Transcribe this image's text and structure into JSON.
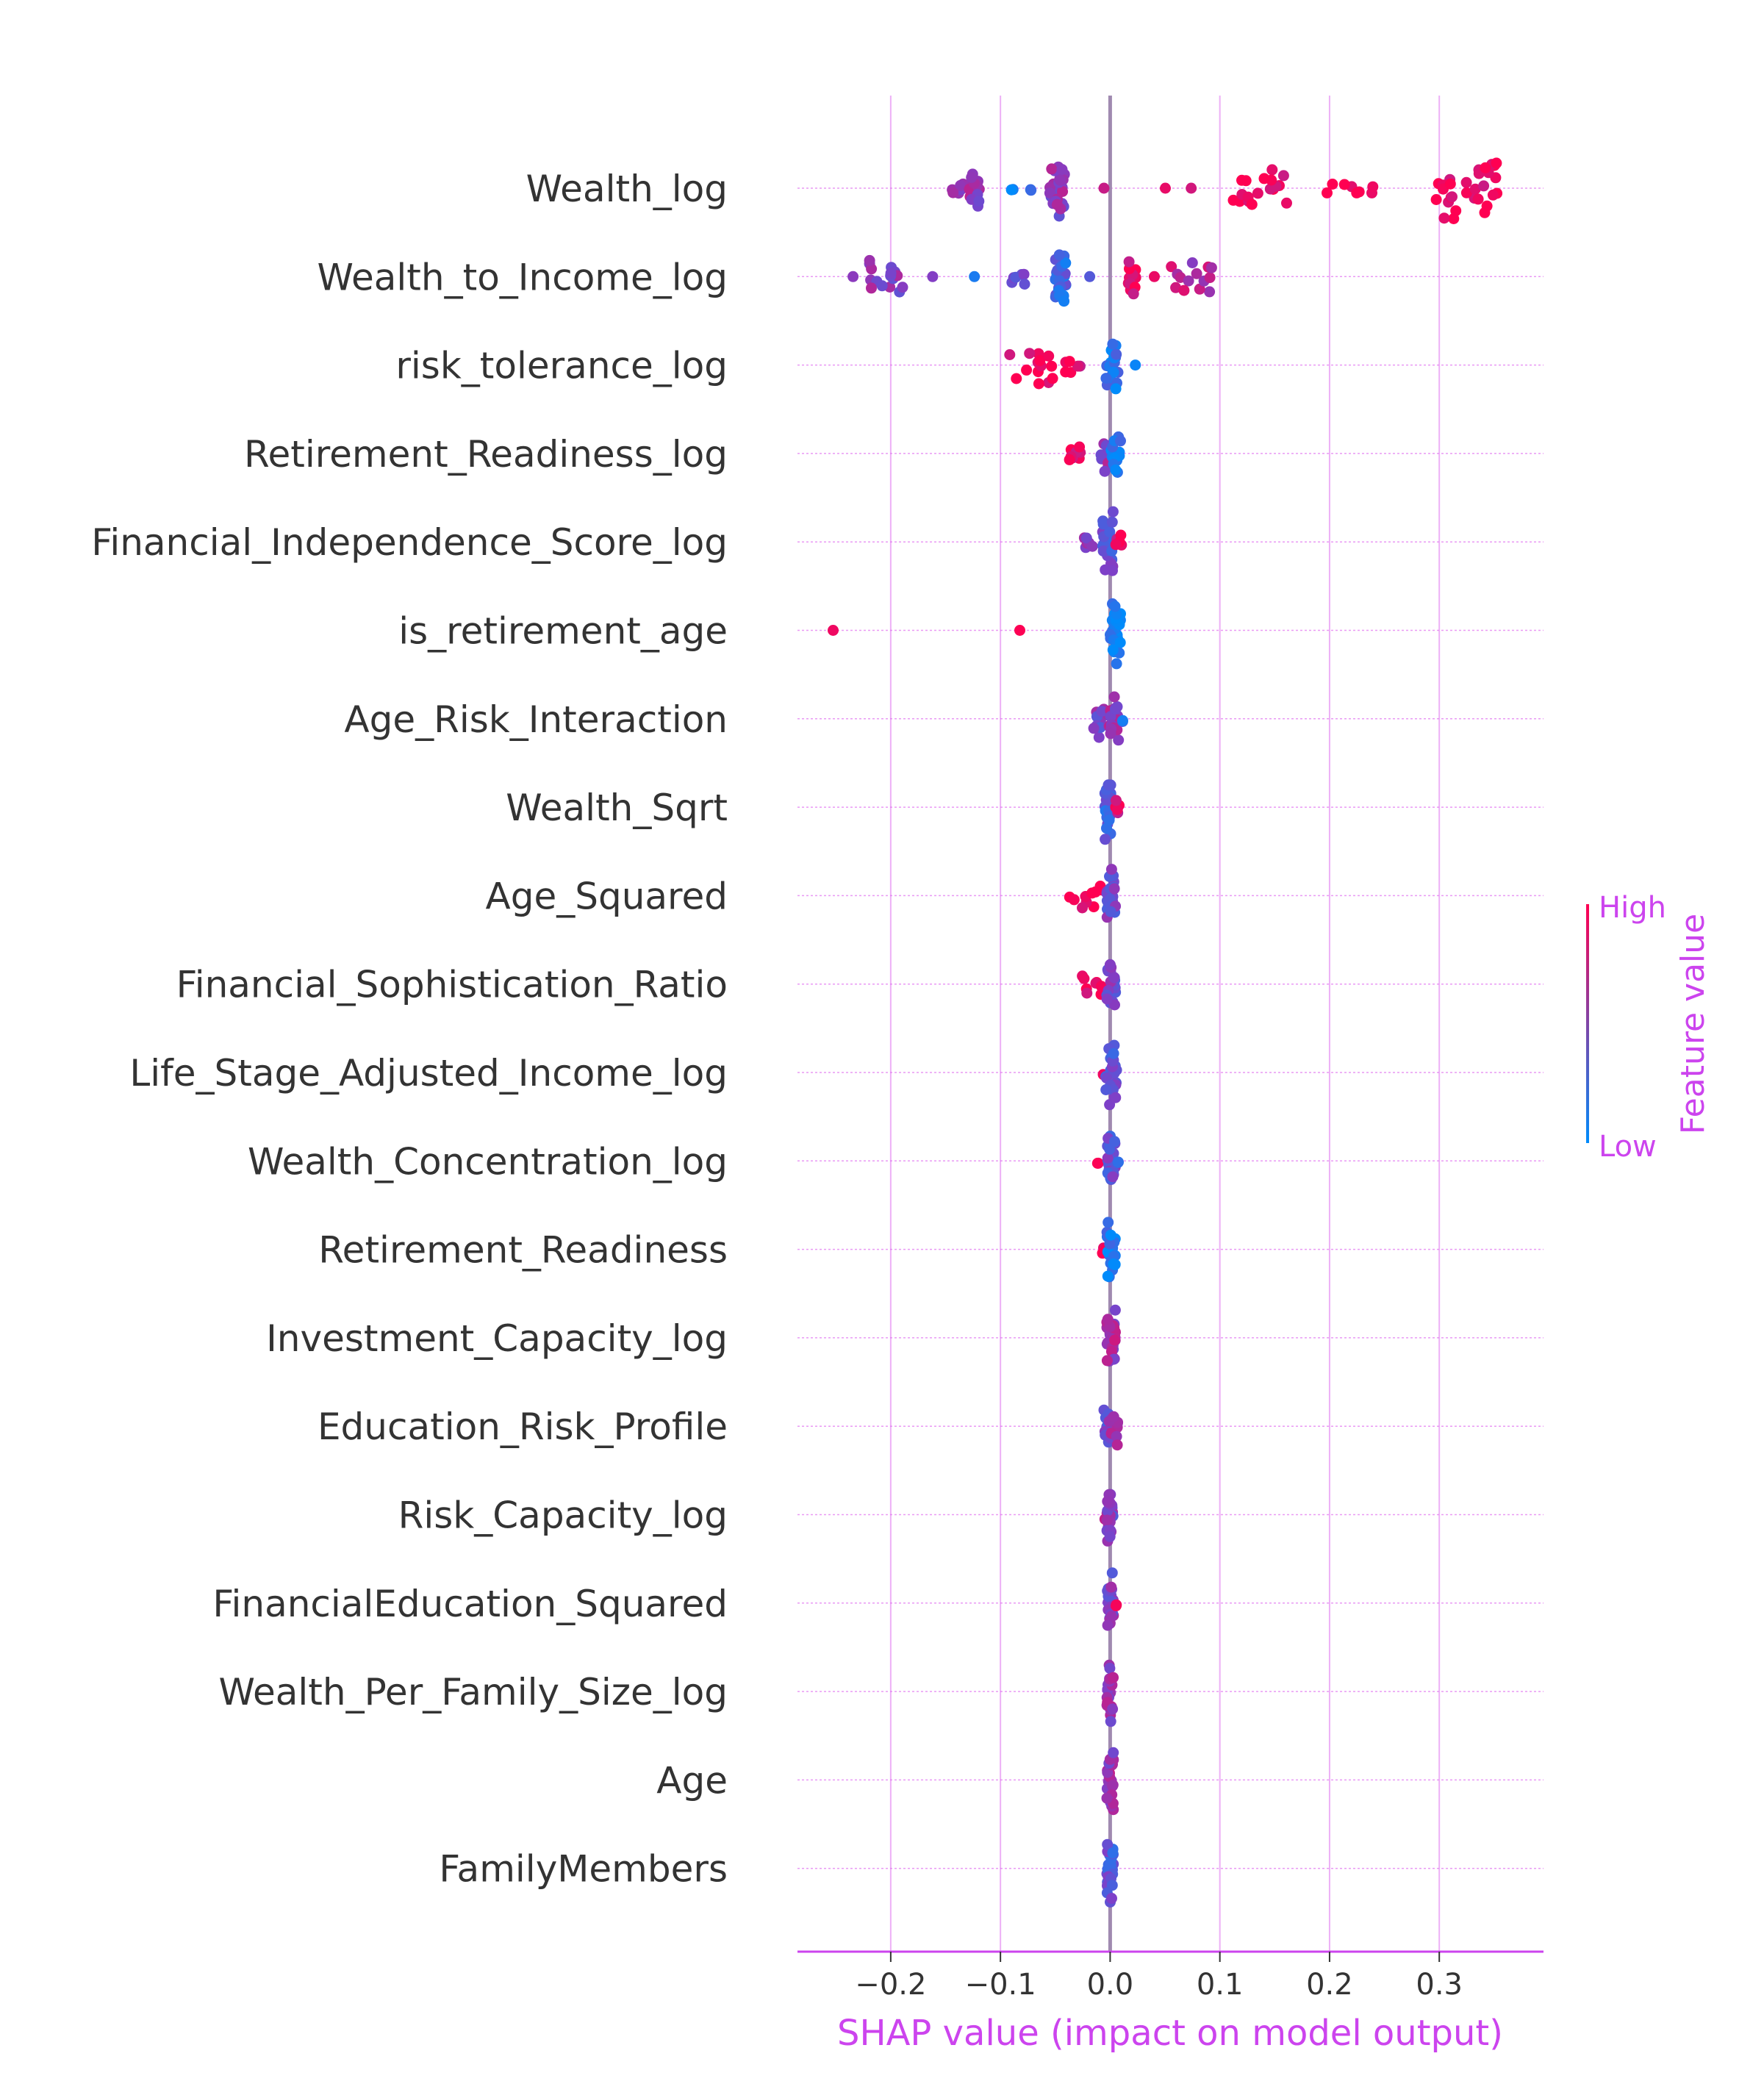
{
  "chart_data": {
    "type": "scatter",
    "subtype": "shap-beeswarm",
    "title": "",
    "xlabel": "SHAP value (impact on model output)",
    "xlim": [
      -0.285,
      0.395
    ],
    "xticks": [
      -0.2,
      -0.1,
      0.0,
      0.1,
      0.2,
      0.3
    ],
    "xtick_labels": [
      "−0.2",
      "−0.1",
      "0.0",
      "0.1",
      "0.2",
      "0.3"
    ],
    "grid": true,
    "colorbar": {
      "high_label": "High",
      "low_label": "Low",
      "title": "Feature value",
      "high_color": "#ff0052",
      "low_color": "#008bfb"
    },
    "colors": {
      "accent": "#cc44ee",
      "zero_line": "#a08ab0",
      "row_line": "#e070f0"
    },
    "features": [
      {
        "name": "Wealth_log",
        "clusters": [
          {
            "x": -0.14,
            "hw": 0.006,
            "n": 6,
            "c": 0.55
          },
          {
            "x": -0.125,
            "hw": 0.006,
            "n": 14,
            "c": 0.6
          },
          {
            "x": -0.087,
            "hw": 0.003,
            "n": 2,
            "c": 0.05
          },
          {
            "x": -0.072,
            "hw": 0.003,
            "n": 2,
            "c": 0.1
          },
          {
            "x": -0.048,
            "hw": 0.007,
            "n": 28,
            "c": 0.55
          },
          {
            "x": -0.005,
            "hw": 0.002,
            "n": 1,
            "c": 0.95
          },
          {
            "x": 0.05,
            "hw": 0.001,
            "n": 1,
            "c": 0.95
          },
          {
            "x": 0.075,
            "hw": 0.001,
            "n": 1,
            "c": 0.95
          },
          {
            "x": 0.135,
            "hw": 0.03,
            "n": 18,
            "c": 0.95
          },
          {
            "x": 0.21,
            "hw": 0.03,
            "n": 8,
            "c": 0.95
          },
          {
            "x": 0.325,
            "hw": 0.028,
            "n": 30,
            "c": 0.95
          }
        ]
      },
      {
        "name": "Wealth_to_Income_log",
        "clusters": [
          {
            "x": -0.235,
            "hw": 0.002,
            "n": 1,
            "c": 0.55
          },
          {
            "x": -0.205,
            "hw": 0.016,
            "n": 16,
            "c": 0.55
          },
          {
            "x": -0.16,
            "hw": 0.003,
            "n": 1,
            "c": 0.45
          },
          {
            "x": -0.125,
            "hw": 0.002,
            "n": 1,
            "c": 0.05
          },
          {
            "x": -0.085,
            "hw": 0.008,
            "n": 6,
            "c": 0.5
          },
          {
            "x": -0.045,
            "hw": 0.005,
            "n": 32,
            "c": 0.25
          },
          {
            "x": -0.02,
            "hw": 0.002,
            "n": 1,
            "c": 0.5
          },
          {
            "x": 0.02,
            "hw": 0.004,
            "n": 14,
            "c": 0.9
          },
          {
            "x": 0.04,
            "hw": 0.002,
            "n": 1,
            "c": 0.95
          },
          {
            "x": 0.075,
            "hw": 0.02,
            "n": 14,
            "c": 0.7
          }
        ]
      },
      {
        "name": "risk_tolerance_log",
        "clusters": [
          {
            "x": -0.072,
            "hw": 0.02,
            "n": 14,
            "c": 0.95
          },
          {
            "x": -0.03,
            "hw": 0.012,
            "n": 6,
            "c": 0.9
          },
          {
            "x": 0.002,
            "hw": 0.006,
            "n": 18,
            "c": 0.15
          },
          {
            "x": 0.025,
            "hw": 0.002,
            "n": 1,
            "c": 0.05
          }
        ]
      },
      {
        "name": "Retirement_Readiness_log",
        "clusters": [
          {
            "x": -0.028,
            "hw": 0.014,
            "n": 8,
            "c": 0.95
          },
          {
            "x": -0.003,
            "hw": 0.006,
            "n": 14,
            "c": 0.6
          },
          {
            "x": 0.006,
            "hw": 0.005,
            "n": 16,
            "c": 0.1
          }
        ]
      },
      {
        "name": "Financial_Independence_Score_log",
        "clusters": [
          {
            "x": -0.018,
            "hw": 0.006,
            "n": 6,
            "c": 0.5
          },
          {
            "x": -0.002,
            "hw": 0.005,
            "n": 24,
            "c": 0.4
          },
          {
            "x": 0.008,
            "hw": 0.004,
            "n": 5,
            "c": 0.9
          }
        ]
      },
      {
        "name": "is_retirement_age",
        "clusters": [
          {
            "x": -0.252,
            "hw": 0.001,
            "n": 1,
            "c": 0.95
          },
          {
            "x": -0.082,
            "hw": 0.001,
            "n": 1,
            "c": 0.95
          },
          {
            "x": 0.005,
            "hw": 0.005,
            "n": 30,
            "c": 0.05
          }
        ]
      },
      {
        "name": "Age_Risk_Interaction",
        "clusters": [
          {
            "x": -0.008,
            "hw": 0.008,
            "n": 14,
            "c": 0.5
          },
          {
            "x": 0.002,
            "hw": 0.006,
            "n": 18,
            "c": 0.6
          },
          {
            "x": 0.012,
            "hw": 0.003,
            "n": 2,
            "c": 0.2
          }
        ]
      },
      {
        "name": "Wealth_Sqrt",
        "clusters": [
          {
            "x": -0.002,
            "hw": 0.003,
            "n": 24,
            "c": 0.3
          },
          {
            "x": 0.008,
            "hw": 0.003,
            "n": 5,
            "c": 0.9
          }
        ]
      },
      {
        "name": "Age_Squared",
        "clusters": [
          {
            "x": -0.022,
            "hw": 0.016,
            "n": 10,
            "c": 0.95
          },
          {
            "x": 0.001,
            "hw": 0.004,
            "n": 22,
            "c": 0.45
          }
        ]
      },
      {
        "name": "Financial_Sophistication_Ratio",
        "clusters": [
          {
            "x": -0.017,
            "hw": 0.01,
            "n": 8,
            "c": 0.95
          },
          {
            "x": 0.001,
            "hw": 0.004,
            "n": 22,
            "c": 0.45
          }
        ]
      },
      {
        "name": "Life_Stage_Adjusted_Income_log",
        "clusters": [
          {
            "x": -0.007,
            "hw": 0.002,
            "n": 2,
            "c": 0.95
          },
          {
            "x": 0.001,
            "hw": 0.005,
            "n": 26,
            "c": 0.4
          }
        ]
      },
      {
        "name": "Wealth_Concentration_log",
        "clusters": [
          {
            "x": -0.01,
            "hw": 0.002,
            "n": 2,
            "c": 0.95
          },
          {
            "x": 0.001,
            "hw": 0.004,
            "n": 24,
            "c": 0.4
          },
          {
            "x": 0.008,
            "hw": 0.002,
            "n": 2,
            "c": 0.1
          }
        ]
      },
      {
        "name": "Retirement_Readiness",
        "clusters": [
          {
            "x": -0.005,
            "hw": 0.002,
            "n": 4,
            "c": 0.95
          },
          {
            "x": 0.001,
            "hw": 0.004,
            "n": 24,
            "c": 0.1
          }
        ]
      },
      {
        "name": "Investment_Capacity_log",
        "clusters": [
          {
            "x": 0.001,
            "hw": 0.004,
            "n": 28,
            "c": 0.6
          },
          {
            "x": 0.006,
            "hw": 0.002,
            "n": 2,
            "c": 0.65
          }
        ]
      },
      {
        "name": "Education_Risk_Profile",
        "clusters": [
          {
            "x": -0.002,
            "hw": 0.004,
            "n": 14,
            "c": 0.4
          },
          {
            "x": 0.003,
            "hw": 0.004,
            "n": 14,
            "c": 0.6
          }
        ]
      },
      {
        "name": "Risk_Capacity_log",
        "clusters": [
          {
            "x": -0.003,
            "hw": 0.003,
            "n": 4,
            "c": 0.7
          },
          {
            "x": 0.0,
            "hw": 0.003,
            "n": 22,
            "c": 0.5
          }
        ]
      },
      {
        "name": "FinancialEducation_Squared",
        "clusters": [
          {
            "x": 0.0,
            "hw": 0.003,
            "n": 24,
            "c": 0.5
          },
          {
            "x": 0.005,
            "hw": 0.002,
            "n": 2,
            "c": 0.9
          }
        ]
      },
      {
        "name": "Wealth_Per_Family_Size_log",
        "clusters": [
          {
            "x": 0.0,
            "hw": 0.003,
            "n": 26,
            "c": 0.6
          }
        ]
      },
      {
        "name": "Age",
        "clusters": [
          {
            "x": 0.0,
            "hw": 0.003,
            "n": 26,
            "c": 0.6
          }
        ]
      },
      {
        "name": "FamilyMembers",
        "clusters": [
          {
            "x": 0.0,
            "hw": 0.003,
            "n": 26,
            "c": 0.35
          }
        ]
      }
    ]
  }
}
